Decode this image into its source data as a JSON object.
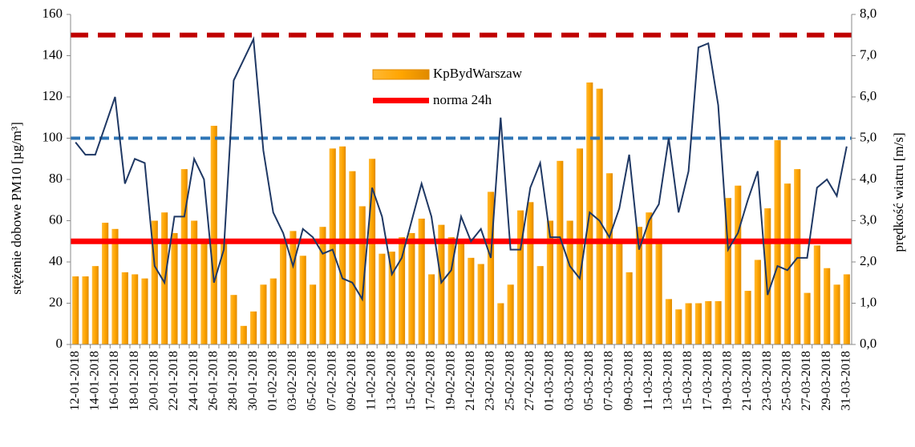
{
  "chart_data": {
    "type": "bar",
    "y_label": "stężenie  dobowe PM10 [µg/m³]",
    "y2_label": "prędkość wiatru [m/s]",
    "categories": [
      "12-01-2018",
      null,
      "14-01-2018",
      null,
      "16-01-2018",
      null,
      "18-01-2018",
      null,
      "20-01-2018",
      null,
      "22-01-2018",
      null,
      "24-01-2018",
      null,
      "26-01-2018",
      null,
      "28-01-2018",
      null,
      "30-01-2018",
      null,
      "01-02-2018",
      null,
      "03-02-2018",
      null,
      "05-02-2018",
      null,
      "07-02-2018",
      null,
      "09-02-2018",
      null,
      "11-02-2018",
      null,
      "13-02-2018",
      null,
      "15-02-2018",
      null,
      "17-02-2018",
      null,
      "19-02-2018",
      null,
      "21-02-2018",
      null,
      "23-02-2018",
      null,
      "25-02-2018",
      null,
      "27-02-2018",
      null,
      "01-03-2018",
      null,
      "03-03-2018",
      null,
      "05-03-2018",
      null,
      "07-03-2018",
      null,
      "09-03-2018",
      null,
      "11-03-2018",
      null,
      "13-03-2018",
      null,
      "15-03-2018",
      null,
      "17-03-2018",
      null,
      "19-03-2018",
      null,
      "21-03-2018",
      null,
      "23-03-2018",
      null,
      "25-03-2018",
      null,
      "27-03-2018",
      null,
      "29-03-2018",
      null,
      "31-03-2018"
    ],
    "series": [
      {
        "name": "KpBydWarszaw",
        "type": "bar",
        "color": "#ffa500",
        "values": [
          33,
          33,
          38,
          59,
          56,
          35,
          34,
          32,
          60,
          64,
          54,
          85,
          60,
          50,
          106,
          50,
          24,
          9,
          16,
          29,
          32,
          50,
          55,
          43,
          29,
          57,
          95,
          96,
          84,
          67,
          90,
          44,
          45,
          52,
          54,
          61,
          34,
          58,
          52,
          50,
          42,
          39,
          74,
          20,
          29,
          65,
          69,
          38,
          60,
          89,
          60,
          95,
          127,
          124,
          83,
          49,
          35,
          57,
          64,
          50,
          22,
          17,
          20,
          20,
          21,
          21,
          71,
          77,
          26,
          41,
          66,
          99,
          78,
          85,
          25,
          48,
          37,
          29,
          34
        ]
      },
      {
        "type": "line",
        "axis": "y2",
        "color": "#1f3864",
        "values": [
          4.9,
          4.6,
          4.6,
          5.3,
          6.0,
          3.9,
          4.5,
          4.4,
          1.9,
          1.5,
          3.1,
          3.1,
          4.5,
          4.0,
          1.5,
          2.3,
          6.4,
          6.9,
          7.4,
          4.7,
          3.2,
          2.7,
          1.9,
          2.8,
          2.6,
          2.2,
          2.3,
          1.6,
          1.5,
          1.1,
          3.8,
          3.1,
          1.7,
          2.1,
          3.0,
          3.9,
          3.1,
          1.5,
          1.8,
          3.1,
          2.5,
          2.8,
          2.1,
          5.5,
          2.3,
          2.3,
          3.8,
          4.4,
          2.6,
          2.6,
          1.9,
          1.6,
          3.2,
          3.0,
          2.6,
          3.3,
          4.6,
          2.3,
          3.0,
          3.4,
          5.0,
          3.2,
          4.2,
          7.2,
          7.3,
          5.8,
          2.3,
          2.7,
          3.5,
          4.2,
          1.2,
          1.9,
          1.8,
          2.1,
          2.1,
          3.8,
          4.0,
          3.6,
          4.8
        ]
      }
    ],
    "reference_lines": [
      {
        "name": "norma 24h",
        "value": 50,
        "color": "#ff0000",
        "dash": false
      },
      {
        "value": 150,
        "color": "#c00000",
        "dash": true
      },
      {
        "value": 100,
        "color": "#2e75b6",
        "dash": true
      }
    ],
    "ylim": [
      0,
      160
    ],
    "yticks": [
      0,
      20,
      40,
      60,
      80,
      100,
      120,
      140,
      160
    ],
    "y2lim": [
      0,
      8
    ],
    "y2ticks": [
      {
        "value": 0,
        "label": "0,0"
      },
      {
        "value": 1,
        "label": "1,0"
      },
      {
        "value": 2,
        "label": "2,0"
      },
      {
        "value": 3,
        "label": "3,0"
      },
      {
        "value": 4,
        "label": "4,0"
      },
      {
        "value": 5,
        "label": "5,0"
      },
      {
        "value": 6,
        "label": "6,0"
      },
      {
        "value": 7,
        "label": "7,0"
      },
      {
        "value": 8,
        "label": "8,0"
      }
    ],
    "grid": false
  }
}
